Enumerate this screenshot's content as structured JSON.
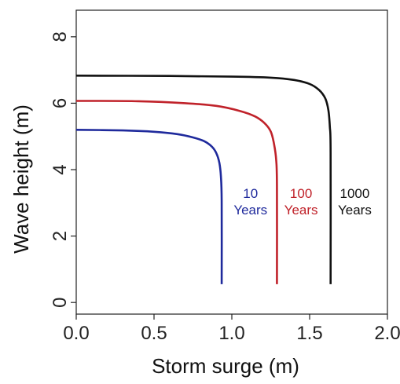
{
  "chart_data": {
    "type": "line",
    "xlabel": "Storm surge (m)",
    "ylabel": "Wave height (m)",
    "xlim": [
      0.0,
      2.0
    ],
    "ylim": [
      -0.35,
      8.8
    ],
    "xticks": [
      0.0,
      0.5,
      1.0,
      1.5,
      2.0
    ],
    "xtick_labels": [
      "0.0",
      "0.5",
      "1.0",
      "1.5",
      "2.0"
    ],
    "yticks": [
      0,
      2,
      4,
      6,
      8
    ],
    "ytick_labels": [
      "0",
      "2",
      "4",
      "6",
      "8"
    ],
    "grid": false,
    "legend": "none",
    "series": [
      {
        "color": "#1f2a9c",
        "label_lines": [
          "10",
          "Years"
        ],
        "label_x": 1.12,
        "label_y": 3.15,
        "x": [
          0.0,
          0.3,
          0.5,
          0.65,
          0.75,
          0.82,
          0.87,
          0.9,
          0.92,
          0.93,
          0.935,
          0.935
        ],
        "y": [
          5.2,
          5.18,
          5.14,
          5.07,
          4.97,
          4.86,
          4.7,
          4.5,
          4.2,
          3.8,
          3.0,
          0.55
        ]
      },
      {
        "color": "#c0222a",
        "label_lines": [
          "100",
          "Years"
        ],
        "label_x": 1.445,
        "label_y": 3.15,
        "x": [
          0.0,
          0.4,
          0.7,
          0.9,
          1.05,
          1.15,
          1.21,
          1.25,
          1.27,
          1.285,
          1.29,
          1.29
        ],
        "y": [
          6.07,
          6.06,
          6.0,
          5.92,
          5.77,
          5.6,
          5.4,
          5.15,
          4.8,
          4.3,
          3.5,
          0.55
        ]
      },
      {
        "color": "#111111",
        "label_lines": [
          "1000",
          "Years"
        ],
        "label_x": 1.79,
        "label_y": 3.15,
        "x": [
          0.0,
          0.6,
          1.0,
          1.25,
          1.4,
          1.5,
          1.56,
          1.6,
          1.62,
          1.63,
          1.635,
          1.635
        ],
        "y": [
          6.83,
          6.82,
          6.8,
          6.77,
          6.7,
          6.58,
          6.4,
          6.15,
          5.8,
          5.3,
          4.5,
          0.55
        ]
      }
    ]
  }
}
